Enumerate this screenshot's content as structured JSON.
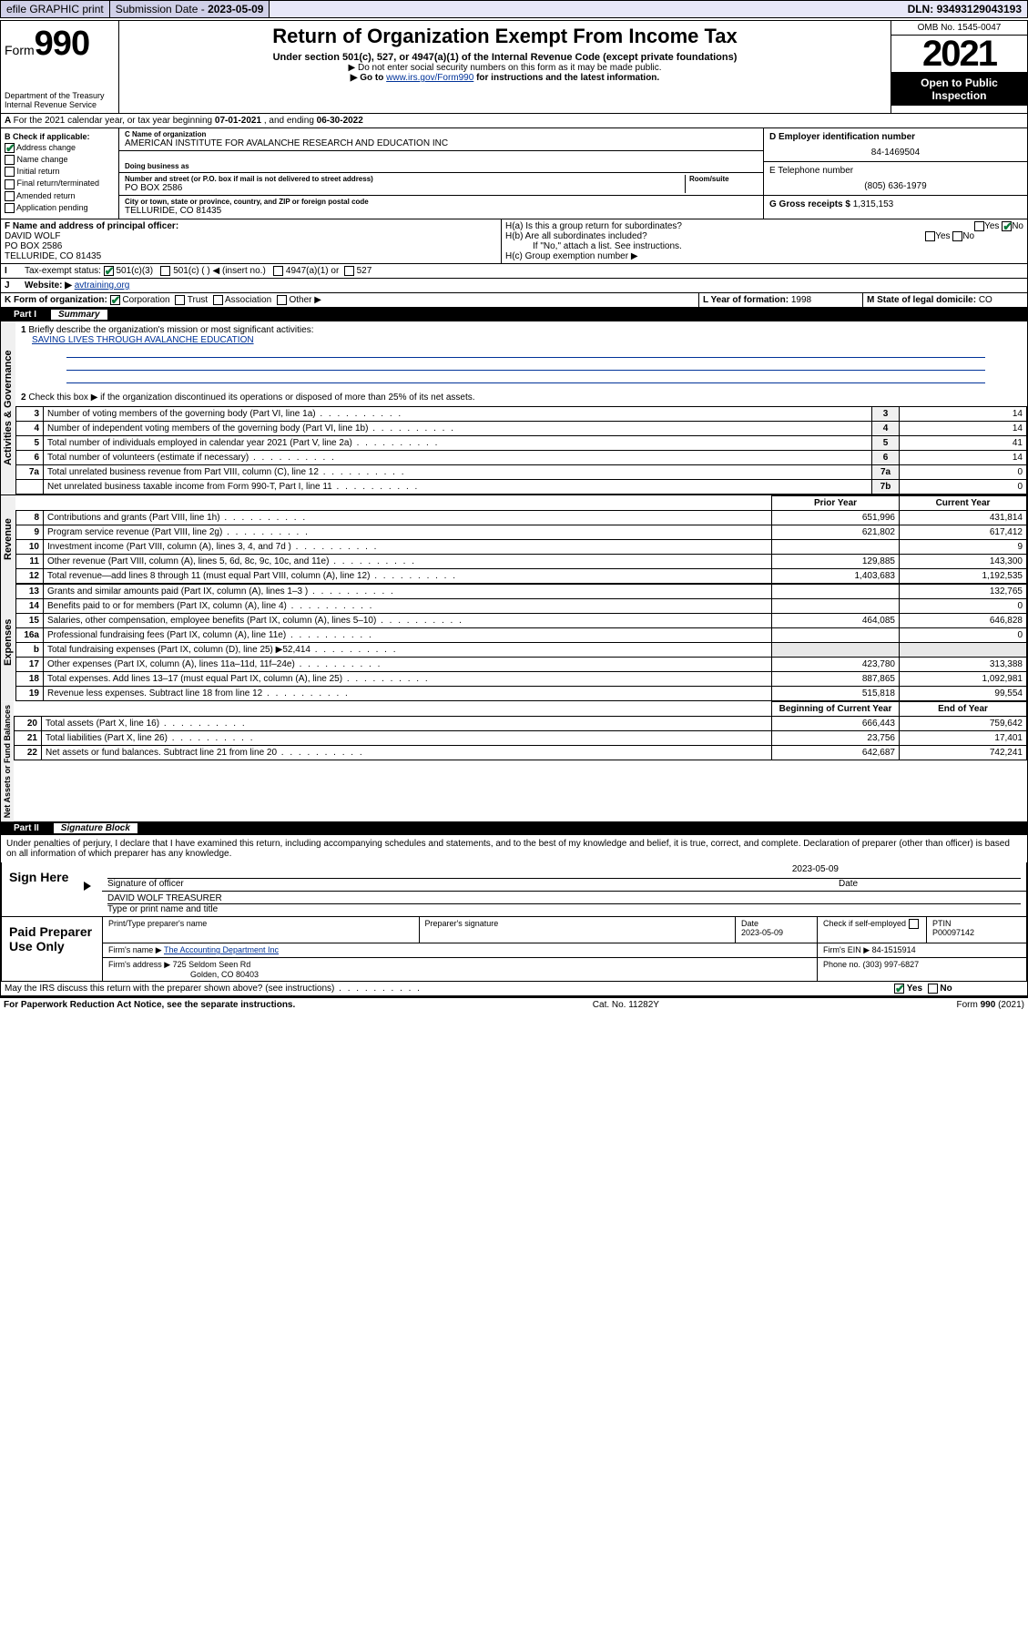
{
  "topbar": {
    "efile": "efile GRAPHIC print",
    "subdate_lbl": "Submission Date - ",
    "subdate": "2023-05-09",
    "dln_lbl": "DLN: ",
    "dln": "93493129043193"
  },
  "header": {
    "form_word": "Form",
    "form_num": "990",
    "dept": "Department of the Treasury",
    "irs": "Internal Revenue Service",
    "title": "Return of Organization Exempt From Income Tax",
    "subtitle": "Under section 501(c), 527, or 4947(a)(1) of the Internal Revenue Code (except private foundations)",
    "note1": "▶ Do not enter social security numbers on this form as it may be made public.",
    "note2_pre": "▶ Go to ",
    "note2_link": "www.irs.gov/Form990",
    "note2_post": " for instructions and the latest information.",
    "omb": "OMB No. 1545-0047",
    "year": "2021",
    "open": "Open to Public Inspection"
  },
  "periodA": {
    "text_pre": "For the 2021 calendar year, or tax year beginning ",
    "begin": "07-01-2021",
    "mid": " , and ending ",
    "end": "06-30-2022"
  },
  "boxB": {
    "label": "B Check if applicable:",
    "addr_change": "Address change",
    "name_change": "Name change",
    "initial": "Initial return",
    "final": "Final return/terminated",
    "amended": "Amended return",
    "app_pending": "Application pending"
  },
  "boxC": {
    "name_lbl": "C Name of organization",
    "name": "AMERICAN INSTITUTE FOR AVALANCHE RESEARCH AND EDUCATION INC",
    "dba_lbl": "Doing business as",
    "street_lbl": "Number and street (or P.O. box if mail is not delivered to street address)",
    "room_lbl": "Room/suite",
    "street": "PO BOX 2586",
    "city_lbl": "City or town, state or province, country, and ZIP or foreign postal code",
    "city": "TELLURIDE, CO  81435"
  },
  "boxD": {
    "lbl": "D Employer identification number",
    "val": "84-1469504"
  },
  "boxE": {
    "lbl": "E Telephone number",
    "val": "(805) 636-1979"
  },
  "boxG": {
    "lbl": "G Gross receipts $ ",
    "val": "1,315,153"
  },
  "boxF": {
    "lbl": "F Name and address of principal officer:",
    "name": "DAVID WOLF",
    "street": "PO BOX 2586",
    "city": "TELLURIDE, CO  81435"
  },
  "boxH": {
    "ha": "H(a)  Is this a group return for subordinates?",
    "hb": "H(b)  Are all subordinates included?",
    "hb_note": "If \"No,\" attach a list. See instructions.",
    "hc": "H(c)  Group exemption number ▶",
    "yes": "Yes",
    "no": "No"
  },
  "boxI": {
    "lbl": "Tax-exempt status:",
    "c3": "501(c)(3)",
    "c": "501(c) (  ) ◀ (insert no.)",
    "a1": "4947(a)(1) or",
    "s527": "527"
  },
  "boxJ": {
    "lbl": "Website: ▶",
    "val": "avtraining.org"
  },
  "boxK": {
    "lbl": "K Form of organization:",
    "corp": "Corporation",
    "trust": "Trust",
    "assoc": "Association",
    "other": "Other ▶"
  },
  "boxL": {
    "lbl": "L Year of formation: ",
    "val": "1998"
  },
  "boxM": {
    "lbl": "M State of legal domicile: ",
    "val": "CO"
  },
  "part1": {
    "name": "Part I",
    "title": "Summary",
    "q1": "Briefly describe the organization's mission or most significant activities:",
    "mission": "SAVING LIVES THROUGH AVALANCHE EDUCATION",
    "q2": "Check this box ▶       if the organization discontinued its operations or disposed of more than 25% of its net assets.",
    "sideA": "Activities & Governance",
    "sideR": "Revenue",
    "sideE": "Expenses",
    "sideN": "Net Assets or Fund Balances",
    "prior": "Prior Year",
    "current": "Current Year",
    "boy": "Beginning of Current Year",
    "eoy": "End of Year",
    "rows_ag": [
      {
        "n": "3",
        "d": "Number of voting members of the governing body (Part VI, line 1a)",
        "ln": "3",
        "v": "14"
      },
      {
        "n": "4",
        "d": "Number of independent voting members of the governing body (Part VI, line 1b)",
        "ln": "4",
        "v": "14"
      },
      {
        "n": "5",
        "d": "Total number of individuals employed in calendar year 2021 (Part V, line 2a)",
        "ln": "5",
        "v": "41"
      },
      {
        "n": "6",
        "d": "Total number of volunteers (estimate if necessary)",
        "ln": "6",
        "v": "14"
      },
      {
        "n": "7a",
        "d": "Total unrelated business revenue from Part VIII, column (C), line 12",
        "ln": "7a",
        "v": "0"
      },
      {
        "n": "",
        "d": "Net unrelated business taxable income from Form 990-T, Part I, line 11",
        "ln": "7b",
        "v": "0"
      }
    ],
    "rows_rev": [
      {
        "n": "8",
        "d": "Contributions and grants (Part VIII, line 1h)",
        "p": "651,996",
        "c": "431,814"
      },
      {
        "n": "9",
        "d": "Program service revenue (Part VIII, line 2g)",
        "p": "621,802",
        "c": "617,412"
      },
      {
        "n": "10",
        "d": "Investment income (Part VIII, column (A), lines 3, 4, and 7d )",
        "p": "",
        "c": "9"
      },
      {
        "n": "11",
        "d": "Other revenue (Part VIII, column (A), lines 5, 6d, 8c, 9c, 10c, and 11e)",
        "p": "129,885",
        "c": "143,300"
      },
      {
        "n": "12",
        "d": "Total revenue—add lines 8 through 11 (must equal Part VIII, column (A), line 12)",
        "p": "1,403,683",
        "c": "1,192,535"
      }
    ],
    "rows_exp": [
      {
        "n": "13",
        "d": "Grants and similar amounts paid (Part IX, column (A), lines 1–3 )",
        "p": "",
        "c": "132,765"
      },
      {
        "n": "14",
        "d": "Benefits paid to or for members (Part IX, column (A), line 4)",
        "p": "",
        "c": "0"
      },
      {
        "n": "15",
        "d": "Salaries, other compensation, employee benefits (Part IX, column (A), lines 5–10)",
        "p": "464,085",
        "c": "646,828"
      },
      {
        "n": "16a",
        "d": "Professional fundraising fees (Part IX, column (A), line 11e)",
        "p": "",
        "c": "0"
      },
      {
        "n": "b",
        "d": "Total fundraising expenses (Part IX, column (D), line 25) ▶52,414",
        "p": "shade",
        "c": "shade"
      },
      {
        "n": "17",
        "d": "Other expenses (Part IX, column (A), lines 11a–11d, 11f–24e)",
        "p": "423,780",
        "c": "313,388"
      },
      {
        "n": "18",
        "d": "Total expenses. Add lines 13–17 (must equal Part IX, column (A), line 25)",
        "p": "887,865",
        "c": "1,092,981"
      },
      {
        "n": "19",
        "d": "Revenue less expenses. Subtract line 18 from line 12",
        "p": "515,818",
        "c": "99,554"
      }
    ],
    "rows_na": [
      {
        "n": "20",
        "d": "Total assets (Part X, line 16)",
        "p": "666,443",
        "c": "759,642"
      },
      {
        "n": "21",
        "d": "Total liabilities (Part X, line 26)",
        "p": "23,756",
        "c": "17,401"
      },
      {
        "n": "22",
        "d": "Net assets or fund balances. Subtract line 21 from line 20",
        "p": "642,687",
        "c": "742,241"
      }
    ]
  },
  "part2": {
    "name": "Part II",
    "title": "Signature Block",
    "penalties": "Under penalties of perjury, I declare that I have examined this return, including accompanying schedules and statements, and to the best of my knowledge and belief, it is true, correct, and complete. Declaration of preparer (other than officer) is based on all information of which preparer has any knowledge.",
    "sign_here": "Sign Here",
    "sig_officer": "Signature of officer",
    "date": "Date",
    "sig_date": "2023-05-09",
    "name_title_lbl": "Type or print name and title",
    "name_title": "DAVID WOLF  TREASURER",
    "paid": "Paid Preparer Use Only",
    "prep_name_lbl": "Print/Type preparer's name",
    "prep_sig_lbl": "Preparer's signature",
    "prep_date_lbl": "Date",
    "prep_date": "2023-05-09",
    "self_emp": "Check        if self-employed",
    "ptin_lbl": "PTIN",
    "ptin": "P00097142",
    "firm_name_lbl": "Firm's name    ▶ ",
    "firm_name": "The Accounting Department Inc",
    "firm_ein_lbl": "Firm's EIN ▶ ",
    "firm_ein": "84-1515914",
    "firm_addr_lbl": "Firm's address ▶ ",
    "firm_addr": "725 Seldom Seen Rd",
    "firm_city": "Golden, CO  80403",
    "firm_phone_lbl": "Phone no. ",
    "firm_phone": "(303) 997-6827",
    "may_discuss": "May the IRS discuss this return with the preparer shown above? (see instructions)"
  },
  "footer": {
    "pra": "For Paperwork Reduction Act Notice, see the separate instructions.",
    "cat": "Cat. No. 11282Y",
    "form": "Form 990 (2021)"
  },
  "colors": {
    "link": "#003399",
    "check_green": "#0a7a3a",
    "topbar_bg": "#e8e8f8"
  }
}
